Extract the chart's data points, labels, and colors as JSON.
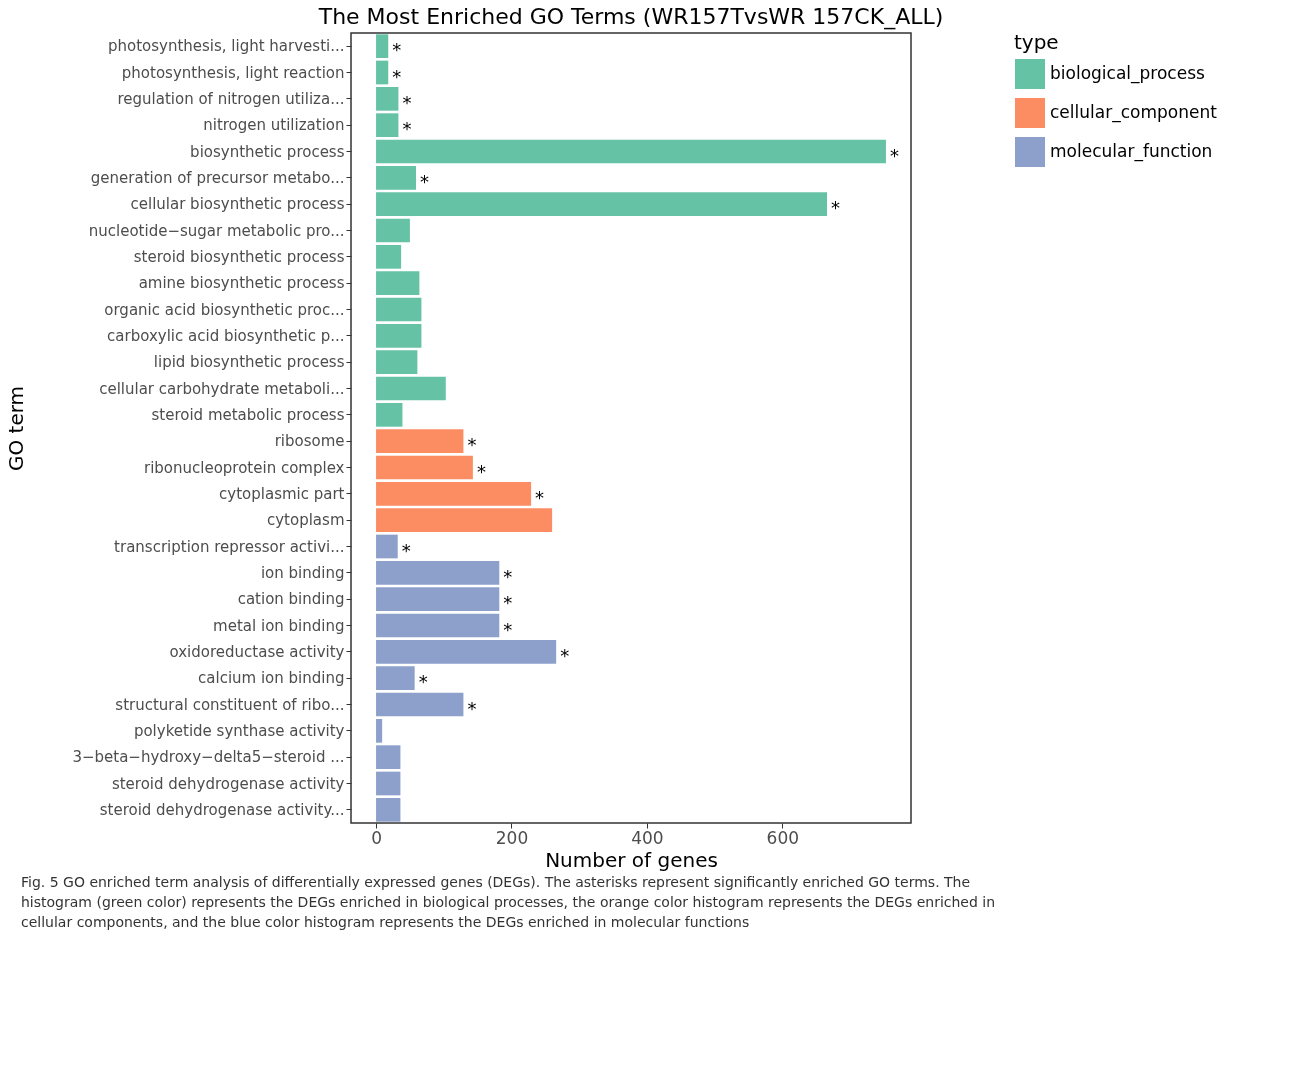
{
  "chart_data": {
    "type": "bar",
    "orientation": "horizontal",
    "title": "The Most Enriched GO Terms (WR157TvsWR 157CK_ALL)",
    "xlabel": "Number of genes",
    "ylabel": "GO term",
    "legend_title": "type",
    "legend": "right",
    "grid": false,
    "categories": [
      "photosynthesis, light harvesti...",
      "photosynthesis, light reaction",
      "regulation of nitrogen utiliza...",
      "nitrogen utilization",
      "biosynthetic process",
      "generation of precursor metabo...",
      "cellular biosynthetic process",
      "nucleotide−sugar metabolic pro...",
      "steroid biosynthetic process",
      "amine biosynthetic process",
      "organic acid biosynthetic proc...",
      "carboxylic acid biosynthetic p...",
      "lipid biosynthetic process",
      "cellular carbohydrate metaboli...",
      "steroid metabolic process",
      "ribosome",
      "ribonucleoprotein complex",
      "cytoplasmic part",
      "cytoplasm",
      "transcription repressor activi...",
      "ion binding",
      "cation binding",
      "metal ion binding",
      "oxidoreductase activity",
      "calcium ion binding",
      "structural constituent of ribo...",
      "polyketide synthase activity",
      "3−beta−hydroxy−delta5−steroid ...",
      "steroid dehydrogenase activity",
      "steroid dehydrogenase activity..."
    ],
    "series": [
      {
        "name": "biological_process",
        "color": "#66c2a5",
        "values": [
          18,
          18,
          33,
          33,
          753,
          59,
          666,
          50,
          37,
          64,
          67,
          67,
          61,
          103,
          39,
          null,
          null,
          null,
          null,
          null,
          null,
          null,
          null,
          null,
          null,
          null,
          null,
          null,
          null,
          null
        ],
        "value_labels": [
          "*",
          "*",
          "*",
          "*",
          "*",
          "*",
          "*",
          null,
          null,
          null,
          null,
          null,
          null,
          null,
          null,
          null,
          null,
          null,
          null,
          null,
          null,
          null,
          null,
          null,
          null,
          null,
          null,
          null,
          null,
          null
        ]
      },
      {
        "name": "cellular_component",
        "color": "#fc8d62",
        "values": [
          null,
          null,
          null,
          null,
          null,
          null,
          null,
          null,
          null,
          null,
          null,
          null,
          null,
          null,
          null,
          129,
          143,
          229,
          260,
          null,
          null,
          null,
          null,
          null,
          null,
          null,
          null,
          null,
          null,
          null
        ],
        "value_labels": [
          null,
          null,
          null,
          null,
          null,
          null,
          null,
          null,
          null,
          null,
          null,
          null,
          null,
          null,
          null,
          "*",
          "*",
          "*",
          null,
          null,
          null,
          null,
          null,
          null,
          null,
          null,
          null,
          null,
          null,
          null
        ]
      },
      {
        "name": "molecular_function",
        "color": "#8da0cb",
        "values": [
          null,
          null,
          null,
          null,
          null,
          null,
          null,
          null,
          null,
          null,
          null,
          null,
          null,
          null,
          null,
          null,
          null,
          null,
          null,
          32,
          182,
          182,
          182,
          266,
          57,
          129,
          9,
          36,
          36,
          36
        ],
        "value_labels": [
          null,
          null,
          null,
          null,
          null,
          null,
          null,
          null,
          null,
          null,
          null,
          null,
          null,
          null,
          null,
          null,
          null,
          null,
          null,
          "*",
          "*",
          "*",
          "*",
          "*",
          "*",
          "*",
          null,
          null,
          null,
          null
        ]
      }
    ],
    "xlim": [
      -37,
      790
    ],
    "xticks": [
      0,
      200,
      400,
      600
    ],
    "annotations": [
      "Fig. 5 GO enriched term analysis of differentially expressed genes (DEGs). The asterisks represent significantly enriched GO terms. The histogram (green color) represents the DEGs enriched in biological processes, the orange color histogram represents the DEGs enriched in cellular components, and the blue color histogram represents the DEGs enriched in molecular functions"
    ]
  }
}
